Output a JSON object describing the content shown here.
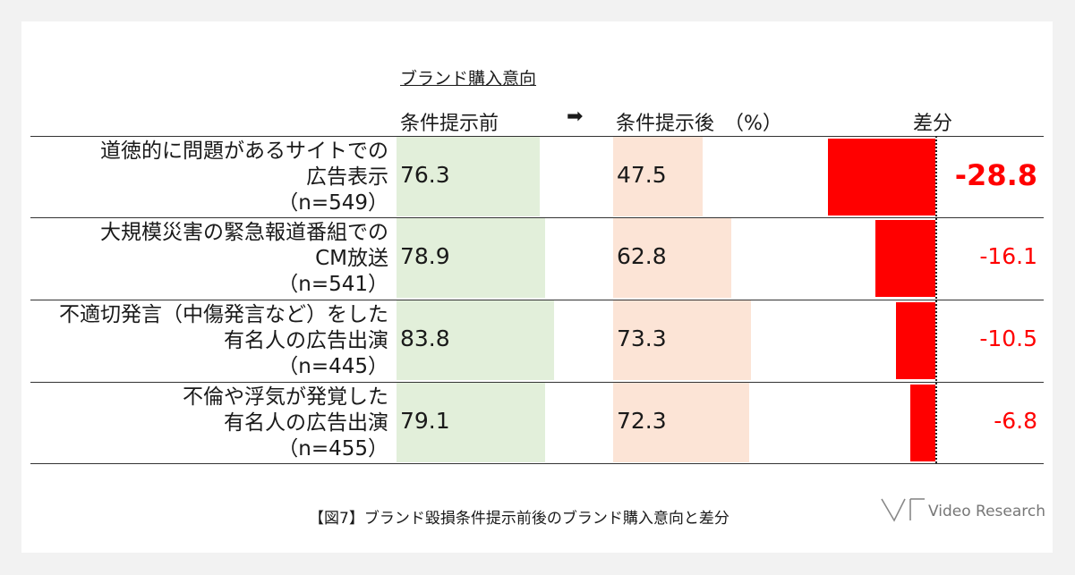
{
  "section_title": "ブランド購入意向",
  "headers": {
    "before": "条件提示前",
    "arrow": "➡",
    "after": "条件提示後　（%）",
    "diff": "差分"
  },
  "caption": "【図7】ブランド毀損条件提示前後のブランド購入意向と差分",
  "logo_text": "Video Research",
  "colors": {
    "before_bar": "#e2efda",
    "after_bar": "#fce4d6",
    "diff_bar": "#ff0000",
    "diff_text": "#ff0000"
  },
  "chart_data": {
    "type": "bar",
    "categories": [
      {
        "lines": [
          "道徳的に問題があるサイトでの",
          "広告表示",
          "（n=549）"
        ]
      },
      {
        "lines": [
          "大規模災害の緊急報道番組での",
          "CM放送",
          "（n=541）"
        ]
      },
      {
        "lines": [
          "不適切発言（中傷発言など）をした",
          "有名人の広告出演",
          "（n=445）"
        ]
      },
      {
        "lines": [
          "不倫や浮気が発覚した",
          "有名人の広告出演",
          "（n=455）"
        ]
      }
    ],
    "series": [
      {
        "name": "条件提示前",
        "values": [
          76.3,
          78.9,
          83.8,
          79.1
        ]
      },
      {
        "name": "条件提示後",
        "values": [
          47.5,
          62.8,
          73.3,
          72.3
        ]
      },
      {
        "name": "差分",
        "values": [
          -28.8,
          -16.1,
          -10.5,
          -6.8
        ]
      }
    ],
    "value_labels": {
      "before": [
        "76.3",
        "78.9",
        "83.8",
        "79.1"
      ],
      "after": [
        "47.5",
        "62.8",
        "73.3",
        "72.3"
      ],
      "diff": [
        "-28.8",
        "-16.1",
        "-10.5",
        "-6.8"
      ]
    },
    "unit": "%",
    "highlight_row": 0
  }
}
